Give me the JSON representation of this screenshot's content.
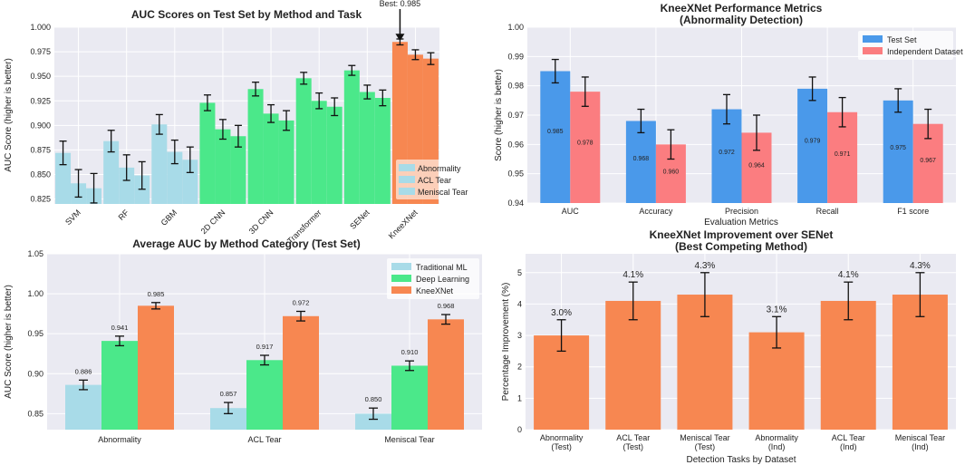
{
  "colors": {
    "panel_bg": "#eaeaf2",
    "grid": "#ffffff",
    "ml": "#a8dbe8",
    "dl": "#4be88a",
    "kx": "#f78751",
    "test": "#4a99ea",
    "ind": "#fb7d80",
    "impr": "#f78751",
    "err": "#111111"
  },
  "chart_data": [
    {
      "id": "top-left",
      "type": "bar",
      "title": "AUC Scores on Test Set by Method and Task",
      "ylabel": "AUC Score (higher is better)",
      "xlabel": "",
      "ylim": [
        0.82,
        1.0
      ],
      "yticks": [
        "0.825",
        "0.850",
        "0.875",
        "0.900",
        "0.925",
        "0.950",
        "0.975",
        "1.000"
      ],
      "categories": [
        "SVM",
        "RF",
        "GBM",
        "2D CNN",
        "3D CNN",
        "Transformer",
        "SENet",
        "KneeXNet"
      ],
      "category_group": [
        "ml",
        "ml",
        "ml",
        "dl",
        "dl",
        "dl",
        "dl",
        "kx"
      ],
      "series": [
        {
          "name": "Abnormality",
          "values": [
            0.872,
            0.884,
            0.901,
            0.923,
            0.937,
            0.948,
            0.956,
            0.985
          ],
          "errors": [
            0.012,
            0.011,
            0.01,
            0.008,
            0.007,
            0.006,
            0.005,
            0.003
          ]
        },
        {
          "name": "ACL Tear",
          "values": [
            0.841,
            0.857,
            0.873,
            0.896,
            0.912,
            0.925,
            0.934,
            0.972
          ],
          "errors": [
            0.014,
            0.013,
            0.012,
            0.01,
            0.009,
            0.008,
            0.007,
            0.005
          ]
        },
        {
          "name": "Meniscal Tear",
          "values": [
            0.836,
            0.849,
            0.865,
            0.889,
            0.905,
            0.919,
            0.928,
            0.968
          ],
          "errors": [
            0.015,
            0.014,
            0.013,
            0.011,
            0.01,
            0.009,
            0.008,
            0.006
          ]
        }
      ],
      "legend": [
        "Abnormality",
        "ACL Tear",
        "Meniscal Tear"
      ],
      "legend_position": "lower-right",
      "annotation": "Best: 0.985"
    },
    {
      "id": "top-right",
      "type": "bar",
      "title": "KneeXNet Performance Metrics",
      "subtitle": "(Abnormality Detection)",
      "ylabel": "Score (higher is better)",
      "xlabel": "Evaluation Metrics",
      "ylim": [
        0.94,
        1.0
      ],
      "yticks": [
        "0.94",
        "0.95",
        "0.96",
        "0.97",
        "0.98",
        "0.99",
        "1.00"
      ],
      "categories": [
        "AUC",
        "Accuracy",
        "Precision",
        "Recall",
        "F1 score"
      ],
      "series": [
        {
          "name": "Test Set",
          "values": [
            0.985,
            0.968,
            0.972,
            0.979,
            0.975
          ],
          "errors": [
            0.004,
            0.004,
            0.005,
            0.004,
            0.004
          ],
          "labels": [
            "0.985",
            "0.968",
            "0.972",
            "0.979",
            "0.975"
          ]
        },
        {
          "name": "Independent Dataset",
          "values": [
            0.978,
            0.96,
            0.964,
            0.971,
            0.967
          ],
          "errors": [
            0.005,
            0.005,
            0.006,
            0.005,
            0.005
          ],
          "labels": [
            "0.978",
            "0.960",
            "0.964",
            "0.971",
            "0.967"
          ]
        }
      ],
      "legend": [
        "Test Set",
        "Independent Dataset"
      ],
      "legend_position": "top-right"
    },
    {
      "id": "bottom-left",
      "type": "bar",
      "title": "Average AUC by Method Category (Test Set)",
      "ylabel": "AUC Score (higher is better)",
      "xlabel": "",
      "ylim": [
        0.83,
        1.05
      ],
      "yticks": [
        "0.85",
        "0.90",
        "0.95",
        "1.00",
        "1.05"
      ],
      "categories": [
        "Abnormality",
        "ACL Tear",
        "Meniscal Tear"
      ],
      "series": [
        {
          "name": "Traditional ML",
          "values": [
            0.886,
            0.857,
            0.85
          ],
          "errors": [
            0.006,
            0.007,
            0.007
          ],
          "labels": [
            "0.886",
            "0.857",
            "0.850"
          ]
        },
        {
          "name": "Deep Learning",
          "values": [
            0.941,
            0.917,
            0.91
          ],
          "errors": [
            0.006,
            0.006,
            0.006
          ],
          "labels": [
            "0.941",
            "0.917",
            "0.910"
          ]
        },
        {
          "name": "KneeXNet",
          "values": [
            0.985,
            0.972,
            0.968
          ],
          "errors": [
            0.004,
            0.006,
            0.006
          ],
          "labels": [
            "0.985",
            "0.972",
            "0.968"
          ]
        }
      ],
      "legend": [
        "Traditional ML",
        "Deep Learning",
        "KneeXNet"
      ],
      "legend_position": "top-right"
    },
    {
      "id": "bottom-right",
      "type": "bar",
      "title": "KneeXNet Improvement over SENet",
      "subtitle": "(Best Competing Method)",
      "ylabel": "Percentage Improvement (%)",
      "xlabel": "Detection Tasks by Dataset",
      "ylim": [
        0,
        5.6
      ],
      "yticks": [
        "0",
        "1",
        "2",
        "3",
        "4",
        "5"
      ],
      "categories": [
        [
          "Abnormality",
          "(Test)"
        ],
        [
          "ACL Tear",
          "(Test)"
        ],
        [
          "Meniscal Tear",
          "(Test)"
        ],
        [
          "Abnormality",
          "(Ind)"
        ],
        [
          "ACL Tear",
          "(Ind)"
        ],
        [
          "Meniscal Tear",
          "(Ind)"
        ]
      ],
      "series": [
        {
          "name": "Improvement",
          "values": [
            3.0,
            4.1,
            4.3,
            3.1,
            4.1,
            4.3
          ],
          "errors": [
            0.5,
            0.6,
            0.7,
            0.5,
            0.6,
            0.7
          ],
          "labels": [
            "3.0%",
            "4.1%",
            "4.3%",
            "3.1%",
            "4.1%",
            "4.3%"
          ]
        }
      ]
    }
  ]
}
